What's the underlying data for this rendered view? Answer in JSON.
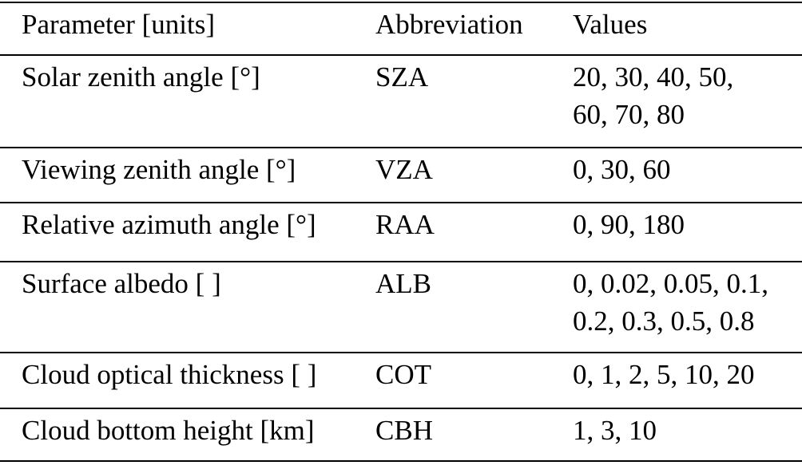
{
  "colors": {
    "background": "#ffffff",
    "text": "#000000",
    "rule": "#000000"
  },
  "table": {
    "header": {
      "parameter": "Parameter [units]",
      "abbreviation": "Abbreviation",
      "values": "Values"
    },
    "rows": [
      {
        "parameter": "Solar zenith angle [°]",
        "abbreviation": "SZA",
        "values": [
          "20, 30, 40, 50,",
          "60, 70, 80"
        ]
      },
      {
        "parameter": "Viewing zenith angle [°]",
        "abbreviation": "VZA",
        "values": [
          "0, 30, 60"
        ]
      },
      {
        "parameter": "Relative azimuth angle [°]",
        "abbreviation": "RAA",
        "values": [
          "0, 90, 180"
        ]
      },
      {
        "parameter": "Surface albedo [ ]",
        "abbreviation": "ALB",
        "values": [
          "0, 0.02, 0.05, 0.1,",
          "0.2, 0.3, 0.5, 0.8"
        ]
      },
      {
        "parameter": "Cloud optical thickness [ ]",
        "abbreviation": "COT",
        "values": [
          "0, 1, 2, 5, 10, 20"
        ]
      },
      {
        "parameter": "Cloud bottom height [km]",
        "abbreviation": "CBH",
        "values": [
          "1, 3, 10"
        ]
      }
    ]
  }
}
